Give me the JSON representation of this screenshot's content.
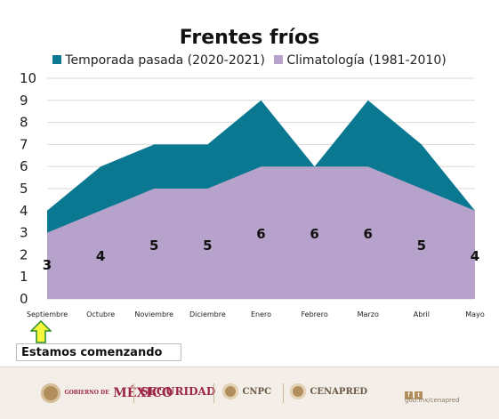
{
  "chart_data": {
    "type": "area",
    "title": "Frentes fríos",
    "categories": [
      "Septiembre",
      "Octubre",
      "Noviembre",
      "Diciembre",
      "Enero",
      "Febrero",
      "Marzo",
      "Abril",
      "Mayo"
    ],
    "series": [
      {
        "name": "Temporada pasada (2020-2021)",
        "color": "#0a7891",
        "values": [
          4,
          6,
          7,
          7,
          9,
          6,
          9,
          7,
          4
        ]
      },
      {
        "name": "Climatología (1981-2010)",
        "color": "#b6a2cb",
        "values": [
          3,
          4,
          5,
          5,
          6,
          6,
          6,
          5,
          4
        ]
      }
    ],
    "data_labels": [
      "3",
      "4",
      "5",
      "5",
      "6",
      "6",
      "6",
      "5",
      "4"
    ],
    "yticks": [
      "0",
      "1",
      "2",
      "3",
      "4",
      "5",
      "6",
      "7",
      "8",
      "9",
      "10"
    ],
    "ylim": [
      0,
      10
    ],
    "grid": true,
    "legend_position": "top"
  },
  "annotation": {
    "text": "Estamos comenzando",
    "arrow_color": "#f6f63a"
  },
  "footer": {
    "gobierno_small": "GOBIERNO DE",
    "mexico": "MÉXICO",
    "seguridad": "SEGURIDAD",
    "cnpc": "CNPC",
    "cenapred": "CENAPRED",
    "url": "gob.mx/cenapred",
    "icons": [
      "facebook-icon",
      "twitter-icon"
    ]
  }
}
